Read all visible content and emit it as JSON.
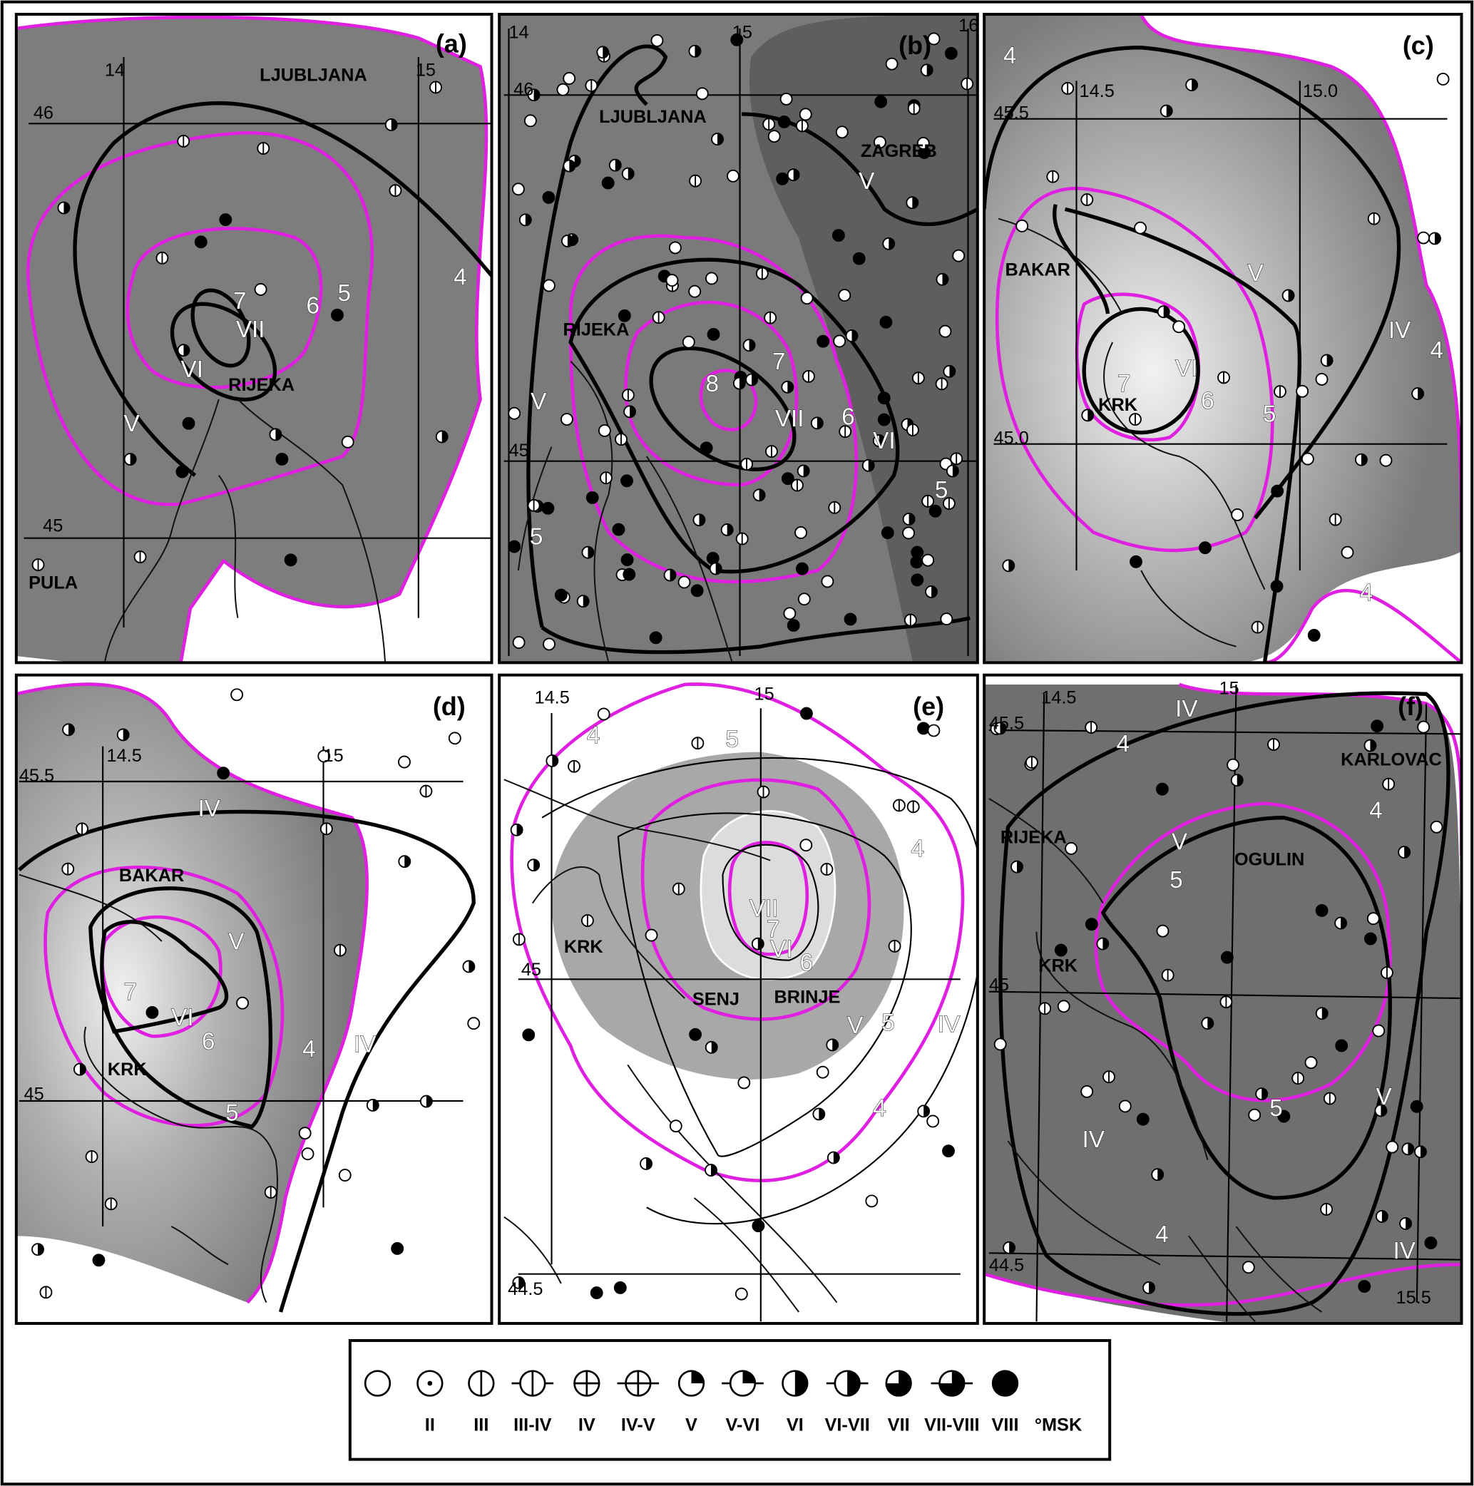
{
  "panels": [
    {
      "tag": "(a)",
      "grid_labels": [
        "14",
        "15",
        "46",
        "45"
      ],
      "places": [
        "LJUBLJANA",
        "RIJEKA",
        "PULA"
      ],
      "labels": [
        "7",
        "6",
        "5",
        "4",
        "VII",
        "VI",
        "V"
      ]
    },
    {
      "tag": "(b)",
      "grid_labels": [
        "14",
        "15",
        "16",
        "46",
        "45"
      ],
      "places": [
        "LJUBLJANA",
        "ZAGREB",
        "RIJEKA"
      ],
      "labels": [
        "8",
        "7",
        "6",
        "5",
        "5",
        "VII",
        "VI",
        "V",
        "V"
      ]
    },
    {
      "tag": "(c)",
      "grid_labels": [
        "14.5",
        "15.0",
        "45.5",
        "45.0"
      ],
      "places": [
        "BAKAR",
        "KRK"
      ],
      "labels": [
        "4",
        "4",
        "4",
        "7",
        "6",
        "5",
        "VI",
        "V",
        "IV"
      ]
    },
    {
      "tag": "(d)",
      "grid_labels": [
        "14.5",
        "15",
        "45.5",
        "45"
      ],
      "places": [
        "BAKAR",
        "KRK"
      ],
      "labels": [
        "7",
        "6",
        "5",
        "4",
        "IV",
        "V",
        "VI",
        "IV"
      ]
    },
    {
      "tag": "(e)",
      "grid_labels": [
        "14.5",
        "15",
        "45",
        "44.5"
      ],
      "places": [
        "KRK",
        "SENJ",
        "BRINJE"
      ],
      "labels": [
        "4",
        "5",
        "4",
        "5",
        "6",
        "4",
        "VII",
        "7",
        "VI",
        "V",
        "IV"
      ]
    },
    {
      "tag": "(f)",
      "grid_labels": [
        "14.5",
        "15",
        "45.5",
        "45",
        "44.5",
        "15.5"
      ],
      "places": [
        "KARLOVAC",
        "RIJEKA",
        "KRK",
        "OGULIN"
      ],
      "labels": [
        "IV",
        "4",
        "4",
        "V",
        "5",
        "5",
        "V",
        "IV",
        "4",
        "IV"
      ]
    }
  ],
  "legend": {
    "symbols": [
      "II",
      "III",
      "III-IV",
      "IV",
      "IV-V",
      "V",
      "V-VI",
      "VI",
      "VI-VII",
      "VII",
      "VII-VIII",
      "VIII"
    ],
    "unit": "°MSK"
  }
}
